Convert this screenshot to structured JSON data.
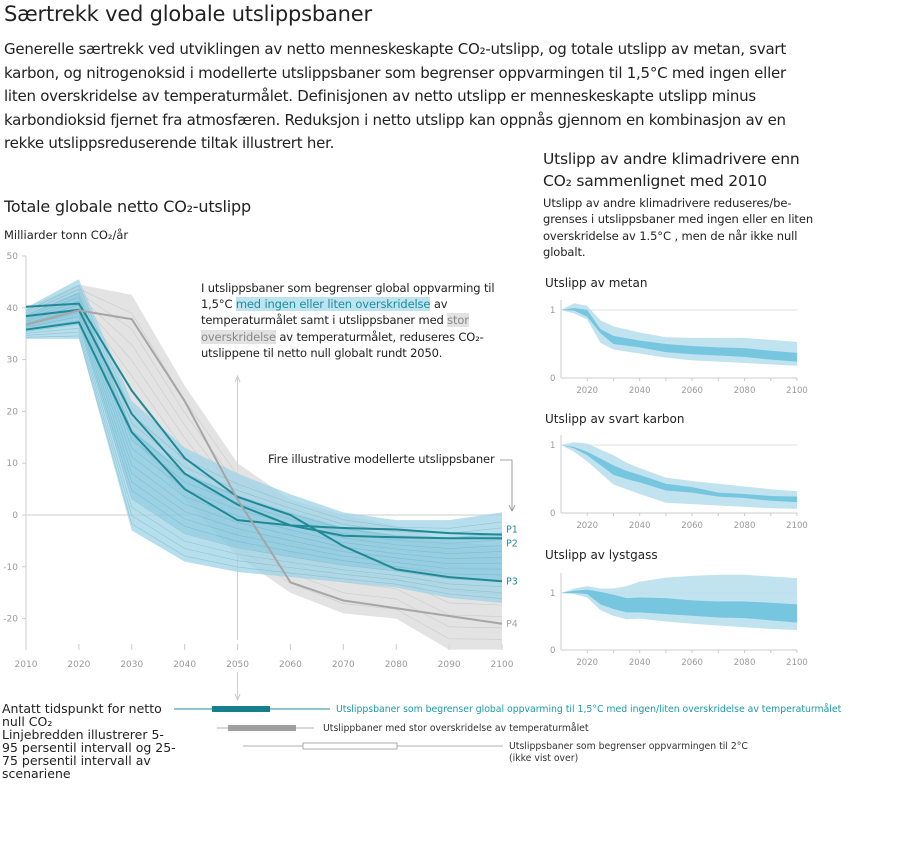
{
  "title": "Særtrekk ved globale utslippsbaner",
  "intro": "Generelle særtrekk ved utviklingen av netto menneskeskapte CO₂-utslipp, og totale utslipp av metan, svart karbon, og nitrogenoksid i modellerte utslippsbaner som begrenser oppvarmingen til 1,5°C med ingen eller liten overskridelse av temperaturmålet. Definisjonen av netto utslipp er menneskeskapte utslipp minus karbondioksid fjernet fra atmosfæren. Reduksjon i netto utslipp kan oppnås gjennom en kombinasjon av en rekke utslippsreduserende tiltak illustrert her.",
  "colors": {
    "teal_line": "#1f8a96",
    "blue_band_outer": "#9fd3e6",
    "blue_band_inner": "#5fbcd9",
    "grey_band": "#d9d9d9",
    "grey_line": "#a6a6a6",
    "axis": "#cccccc",
    "tick_text": "#999999",
    "highlight_blue_bg": "#bfe4f0",
    "highlight_grey_bg": "#e2e2e2"
  },
  "main": {
    "title": "Totale globale netto CO₂-utslipp",
    "unit": "Milliarder tonn CO₂/år",
    "annotation": {
      "part1": "I utslippsbaner som begrenser global oppvarming til 1,5°C ",
      "highlight1": "med ingen eller liten overskridelse",
      "part2": " av temperaturmålet samt i utslippsbaner med ",
      "highlight2": "stor overskridelse",
      "part3": " av temperaturmålet, reduseres CO₂-utslippene til netto null globalt rundt 2050."
    },
    "pathways_label": "Fire illustrative modellerte utslippsbaner"
  },
  "chart_data": [
    {
      "type": "line",
      "title": "Totale globale netto CO₂-utslipp",
      "ylabel": "Milliarder tonn CO₂/år",
      "xlabel": "",
      "xlim": [
        2010,
        2100
      ],
      "ylim": [
        -25,
        50
      ],
      "x_ticks": [
        2010,
        2020,
        2030,
        2040,
        2050,
        2060,
        2070,
        2080,
        2090,
        2100
      ],
      "y_ticks": [
        50,
        40,
        30,
        20,
        10,
        0,
        -10,
        -20
      ],
      "grid": false,
      "x": [
        2010,
        2020,
        2030,
        2040,
        2050,
        2060,
        2070,
        2080,
        2090,
        2100
      ],
      "bands": [
        {
          "name": "1,5°C ingen/liten overskridelse (5-95 persentil)",
          "lower": [
            34,
            34,
            -3,
            -9,
            -11,
            -12,
            -13,
            -14,
            -16,
            -17
          ],
          "upper": [
            40,
            45.5,
            22,
            13,
            8,
            4,
            0.5,
            -1,
            -1,
            0.5
          ]
        },
        {
          "name": "Stor overskridelse (5-95 persentil)",
          "lower": [
            36,
            38,
            15,
            3,
            -8,
            -15,
            -19,
            -20,
            -26,
            -26
          ],
          "upper": [
            40,
            44.5,
            42.5,
            25,
            10,
            3,
            0,
            -2,
            -5,
            -6
          ]
        }
      ],
      "series": [
        {
          "name": "P1",
          "values": [
            35.8,
            37.2,
            16,
            5,
            -1,
            -2,
            -2.5,
            -2.8,
            -3.5,
            -3.8
          ]
        },
        {
          "name": "P2",
          "values": [
            38.4,
            39.6,
            19.5,
            8,
            2,
            -2,
            -4,
            -4.3,
            -4.5,
            -4.5
          ]
        },
        {
          "name": "P3",
          "values": [
            40.2,
            40.8,
            24,
            11,
            3.5,
            0,
            -6,
            -10.5,
            -12,
            -12.8
          ]
        },
        {
          "name": "P4",
          "values": [
            36.7,
            39.5,
            37.8,
            22,
            3,
            -13,
            -16.5,
            -18,
            -19.5,
            -21
          ]
        }
      ]
    },
    {
      "type": "area",
      "title": "Utslipp av metan",
      "xlim": [
        2010,
        2100
      ],
      "ylim": [
        0,
        1.2
      ],
      "x_ticks": [
        2020,
        2040,
        2060,
        2080,
        2100
      ],
      "y_ticks": [
        1,
        0
      ],
      "x": [
        2010,
        2015,
        2020,
        2025,
        2030,
        2040,
        2050,
        2060,
        2070,
        2080,
        2090,
        2100
      ],
      "outer_upper": [
        1,
        1.1,
        1.06,
        0.85,
        0.76,
        0.67,
        0.6,
        0.59,
        0.59,
        0.59,
        0.56,
        0.53
      ],
      "outer_lower": [
        1,
        0.95,
        0.86,
        0.52,
        0.42,
        0.36,
        0.3,
        0.26,
        0.24,
        0.22,
        0.2,
        0.18
      ],
      "inner_upper": [
        1,
        1.03,
        1.0,
        0.72,
        0.62,
        0.55,
        0.5,
        0.47,
        0.45,
        0.44,
        0.4,
        0.37
      ],
      "inner_lower": [
        1,
        0.99,
        0.9,
        0.66,
        0.5,
        0.45,
        0.38,
        0.35,
        0.33,
        0.31,
        0.27,
        0.24
      ]
    },
    {
      "type": "area",
      "title": "Utslipp av svart karbon",
      "xlim": [
        2010,
        2100
      ],
      "ylim": [
        0,
        1.2
      ],
      "x_ticks": [
        2020,
        2040,
        2060,
        2080,
        2100
      ],
      "y_ticks": [
        1,
        0
      ],
      "x": [
        2010,
        2015,
        2020,
        2030,
        2035,
        2040,
        2050,
        2060,
        2070,
        2080,
        2090,
        2100
      ],
      "outer_upper": [
        1,
        1.04,
        1.02,
        0.85,
        0.74,
        0.66,
        0.52,
        0.47,
        0.43,
        0.39,
        0.35,
        0.32
      ],
      "outer_lower": [
        1,
        0.9,
        0.76,
        0.42,
        0.35,
        0.28,
        0.15,
        0.13,
        0.11,
        0.09,
        0.07,
        0.06
      ],
      "inner_upper": [
        1,
        0.97,
        0.9,
        0.7,
        0.62,
        0.56,
        0.43,
        0.38,
        0.3,
        0.28,
        0.25,
        0.24
      ],
      "inner_lower": [
        1,
        0.95,
        0.85,
        0.56,
        0.5,
        0.45,
        0.33,
        0.3,
        0.24,
        0.22,
        0.18,
        0.16
      ]
    },
    {
      "type": "area",
      "title": "Utslipp av lystgass",
      "xlim": [
        2010,
        2100
      ],
      "ylim": [
        0,
        1.4
      ],
      "x_ticks": [
        2020,
        2040,
        2060,
        2080,
        2100
      ],
      "y_ticks": [
        1,
        0
      ],
      "x": [
        2010,
        2015,
        2020,
        2025,
        2030,
        2035,
        2040,
        2050,
        2060,
        2070,
        2080,
        2090,
        2100
      ],
      "outer_upper": [
        1,
        1.08,
        1.12,
        1.08,
        1.08,
        1.12,
        1.2,
        1.27,
        1.3,
        1.32,
        1.32,
        1.29,
        1.26
      ],
      "outer_lower": [
        1,
        0.98,
        0.92,
        0.7,
        0.6,
        0.54,
        0.55,
        0.5,
        0.46,
        0.43,
        0.4,
        0.37,
        0.35
      ],
      "inner_upper": [
        1,
        1.04,
        1.06,
        1.02,
        0.97,
        0.91,
        0.92,
        0.91,
        0.87,
        0.85,
        0.85,
        0.83,
        0.8
      ],
      "inner_lower": [
        1,
        1.0,
        0.98,
        0.8,
        0.72,
        0.66,
        0.66,
        0.63,
        0.6,
        0.57,
        0.56,
        0.52,
        0.48
      ]
    }
  ],
  "right": {
    "title": "Utslipp av andre klimadrivere enn CO₂ sammenlignet med 2010",
    "description": "Utslipp av andre klimadrivere reduseres/be-grenses i utslippsbaner med ingen eller en liten overskridelse av 1.5°C , men de når ikke null globalt.",
    "panels": [
      "Utslipp av metan",
      "Utslipp av svart karbon",
      "Utslipp av lystgass"
    ]
  },
  "legend": {
    "net_zero_label": "Antatt tidspunkt for netto null CO₂",
    "width_note": "Linjebredden illustrerer 5-95 persentil intervall og 25-75 persentil intervall av scenariene",
    "items": [
      {
        "label": "Utslippsbaner som begrenser global oppvarming til 1,5°C med ingen/liten overskridelse av temperaturmålet",
        "color": "#1f8a96",
        "range_5_95": [
          2045,
          2060
        ],
        "range_25_75": [
          2047,
          2057
        ]
      },
      {
        "label": "Utslippbaner med stor overskridelse av temperaturmålet",
        "color": "#a6a6a6",
        "range_5_95": [
          2047,
          2063
        ],
        "range_25_75": [
          2049,
          2059
        ]
      },
      {
        "label": "Utslippsbaner som begrenser oppvarmingen til 2°C",
        "note": "(ikke vist over)",
        "color": "#ffffff",
        "range_5_95": [
          2055,
          2090
        ],
        "range_25_75": [
          2062,
          2076
        ]
      }
    ]
  }
}
